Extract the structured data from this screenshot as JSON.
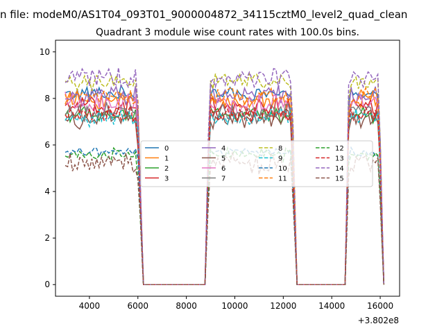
{
  "chart_data": {
    "type": "line",
    "suptitle": "n file: modeM0/AS1T04_093T01_9000004872_34115cztM0_level2_quad_clean",
    "title": "Quadrant 3 module wise count rates with 100.0s bins.",
    "xlabel": "",
    "ylabel": "",
    "x_offset_label": "+3.802e8",
    "xlim": [
      2600,
      16800
    ],
    "ylim": [
      -0.5,
      10.5
    ],
    "x_ticks": [
      4000,
      6000,
      8000,
      10000,
      12000,
      14000,
      16000
    ],
    "y_ticks": [
      0,
      2,
      4,
      6,
      8,
      10
    ],
    "bin_seconds": 100.0,
    "x_start": 3000,
    "x_step": 100,
    "segments": [
      {
        "up": 3000,
        "drop_start": 6000,
        "zero_start": 6230
      },
      {
        "rise_start": 8770,
        "up": 8960,
        "drop_start": 12360,
        "zero_start": 12570
      },
      {
        "rise_start": 14550,
        "up": 14710,
        "drop_start": 15960,
        "zero_start": 16150
      }
    ],
    "legend": {
      "location": "center",
      "columns": 4
    },
    "series": [
      {
        "name": "0",
        "color": "#1f77b4",
        "style": "solid",
        "mean": 8.2,
        "noise": 0.25
      },
      {
        "name": "1",
        "color": "#ff7f0e",
        "style": "solid",
        "mean": 7.9,
        "noise": 0.3
      },
      {
        "name": "2",
        "color": "#2ca02c",
        "style": "solid",
        "mean": 7.3,
        "noise": 0.3
      },
      {
        "name": "3",
        "color": "#d62728",
        "style": "solid",
        "mean": 7.6,
        "noise": 0.35
      },
      {
        "name": "4",
        "color": "#9467bd",
        "style": "solid",
        "mean": 8.1,
        "noise": 0.35
      },
      {
        "name": "5",
        "color": "#8c564b",
        "style": "solid",
        "mean": 7.1,
        "noise": 0.3
      },
      {
        "name": "6",
        "color": "#e377c2",
        "style": "solid",
        "mean": 7.8,
        "noise": 0.35
      },
      {
        "name": "7",
        "color": "#7f7f7f",
        "style": "solid",
        "mean": 7.4,
        "noise": 0.3
      },
      {
        "name": "8",
        "color": "#bcbd22",
        "style": "dashed",
        "mean": 8.7,
        "noise": 0.3
      },
      {
        "name": "9",
        "color": "#17becf",
        "style": "dashed",
        "mean": 7.2,
        "noise": 0.3
      },
      {
        "name": "10",
        "color": "#1f77b4",
        "style": "dashed",
        "mean": 5.7,
        "noise": 0.15
      },
      {
        "name": "11",
        "color": "#ff7f0e",
        "style": "dashed",
        "mean": 8.1,
        "noise": 0.3
      },
      {
        "name": "12",
        "color": "#2ca02c",
        "style": "dashed",
        "mean": 5.6,
        "noise": 0.2
      },
      {
        "name": "13",
        "color": "#d62728",
        "style": "dashed",
        "mean": 7.3,
        "noise": 0.3
      },
      {
        "name": "14",
        "color": "#9467bd",
        "style": "dashed",
        "mean": 8.9,
        "noise": 0.35
      },
      {
        "name": "15",
        "color": "#8c564b",
        "style": "dashed",
        "mean": 5.2,
        "noise": 0.35
      }
    ]
  }
}
